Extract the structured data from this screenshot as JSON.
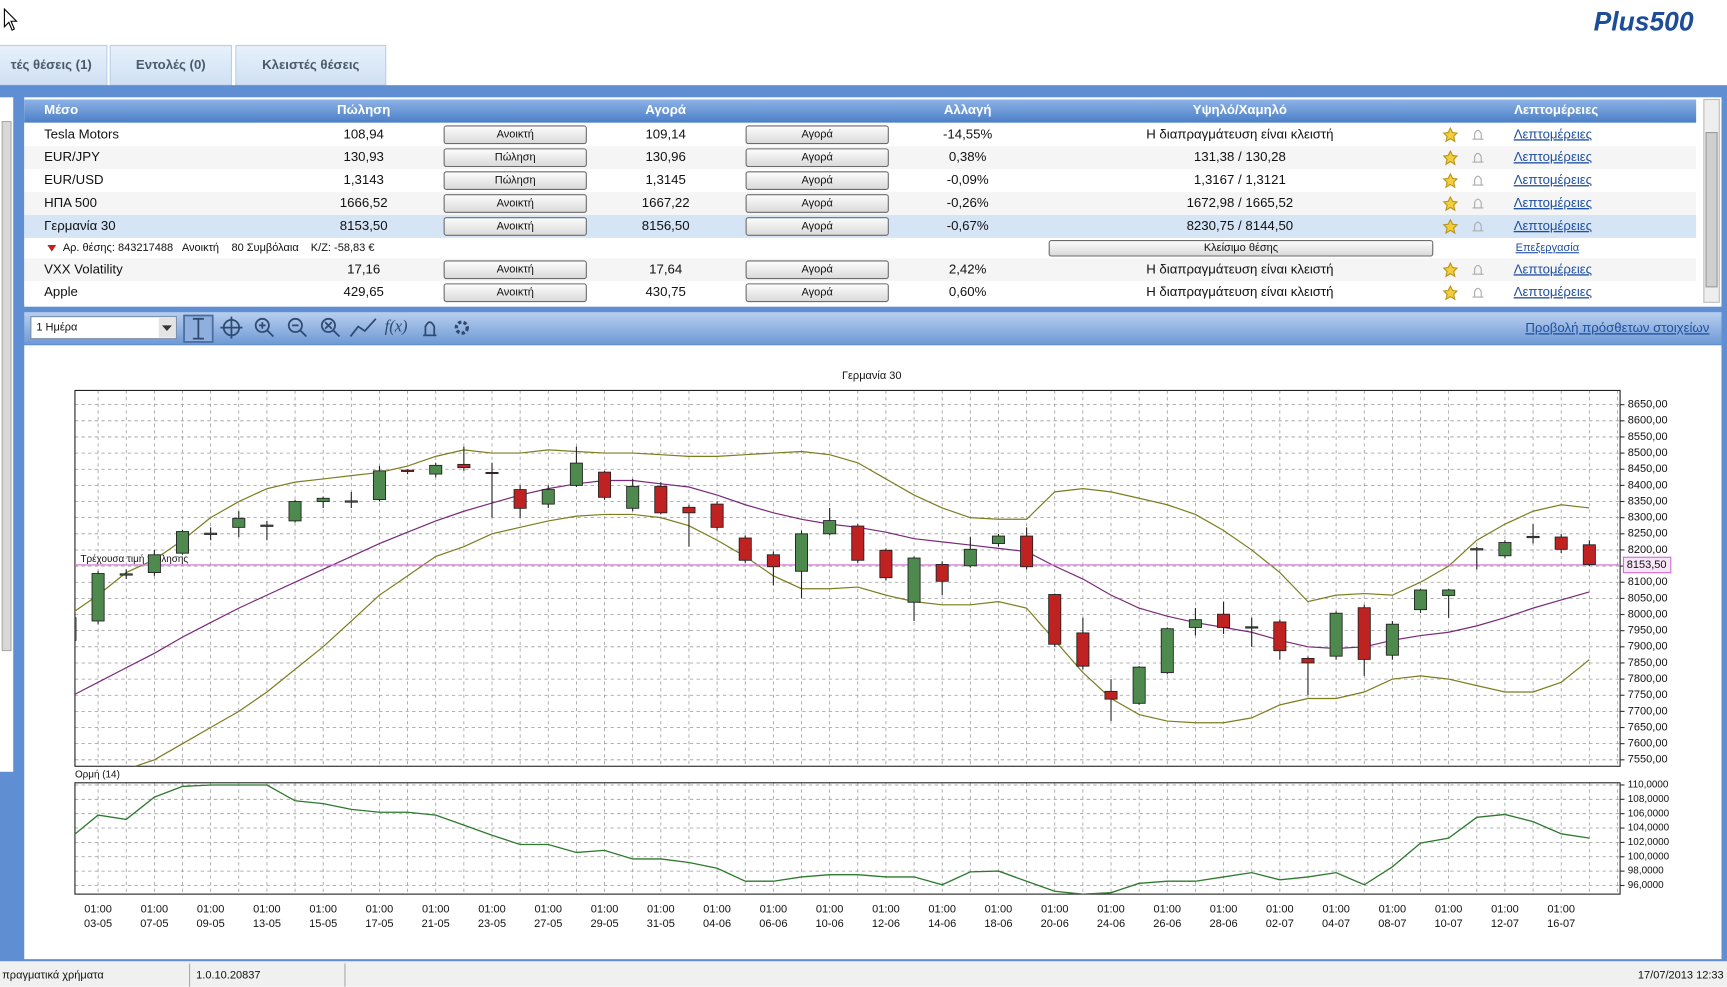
{
  "logo": "Plus500",
  "tabs": [
    "τές θέσεις (1)",
    "Εντολές (0)",
    "Κλειστές θέσεις"
  ],
  "table": {
    "headers": [
      "Μέσο",
      "Πώληση",
      "Αγορά",
      "Αλλαγή",
      "Υψηλό/Χαμηλό",
      "Λεπτομέρειες"
    ],
    "rows": [
      {
        "name": "Tesla Motors",
        "sell": "108,94",
        "sell_button": "Ανοικτή",
        "buy": "109,14",
        "buy_button": "Αγορά",
        "change": "-14,55%",
        "change_color": "#c0282d",
        "high_low": "Η διαπραγμάτευση είναι κλειστή",
        "details": "Λεπτομέρειες"
      },
      {
        "name": "EUR/JPY",
        "sell": "130,93",
        "sell_button": "Πώληση",
        "buy": "130,96",
        "buy_button": "Αγορά",
        "change": "0,38%",
        "change_color": "#3a9a3a",
        "high_low": "131,38 / 130,28",
        "details": "Λεπτομέρειες"
      },
      {
        "name": "EUR/USD",
        "sell": "1,3143",
        "sell_button": "Πώληση",
        "buy": "1,3145",
        "buy_button": "Αγορά",
        "change": "-0,09%",
        "change_color": "#c0282d",
        "price_color": "#3a9a3a",
        "high_low": "1,3167 / 1,3121",
        "details": "Λεπτομέρειες"
      },
      {
        "name": "ΗΠΑ 500",
        "sell": "1666,52",
        "sell_button": "Ανοικτή",
        "buy": "1667,22",
        "buy_button": "Αγορά",
        "change": "-0,26%",
        "change_color": "#c0282d",
        "high_low": "1672,98 / 1665,52",
        "details": "Λεπτομέρειες"
      },
      {
        "name": "Γερμανία 30",
        "sell": "8153,50",
        "sell_button": "Ανοικτή",
        "buy": "8156,50",
        "buy_button": "Αγορά",
        "change": "-0,67%",
        "change_color": "#111111",
        "high_low": "8230,75 / 8144,50",
        "details": "Λεπτομέρειες",
        "selected": true
      },
      {
        "name": "VXX Volatility",
        "sell": "17,16",
        "sell_button": "Ανοικτή",
        "buy": "17,64",
        "buy_button": "Αγορά",
        "change": "2,42%",
        "change_color": "#3a9a3a",
        "high_low": "Η διαπραγμάτευση είναι κλειστή",
        "details": "Λεπτομέρειες"
      },
      {
        "name": "Apple",
        "sell": "429,65",
        "sell_button": "Ανοικτή",
        "buy": "430,75",
        "buy_button": "Αγορά",
        "change": "0,60%",
        "change_color": "#3a9a3a",
        "high_low": "Η διαπραγμάτευση είναι κλειστή",
        "details": "Λεπτομέρειες"
      }
    ],
    "position": {
      "id_label": "Αρ. θέσης: 843217488",
      "status": "Ανοικτή",
      "contracts": "80 Συμβόλαια",
      "pl": "Κ/Ζ: -58,83 €",
      "close_button": "Κλείσιμο θέσης",
      "edit_link": "Επεξεργασία"
    }
  },
  "toolbar": {
    "period": "1 Ημέρα",
    "more_link": "Προβολή πρόσθετων στοιχείων"
  },
  "chart_data": [
    {
      "type": "candlestick",
      "title": "Γερμανία 30",
      "time_label": "01:00",
      "categories": [
        null,
        "03-05",
        null,
        "07-05",
        null,
        "09-05",
        null,
        "13-05",
        null,
        "15-05",
        null,
        "17-05",
        null,
        "21-05",
        null,
        "23-05",
        null,
        "27-05",
        null,
        "29-05",
        null,
        "31-05",
        null,
        "04-06",
        null,
        "06-06",
        null,
        "10-06",
        null,
        "12-06",
        null,
        "14-06",
        null,
        "18-06",
        null,
        "20-06",
        null,
        "24-06",
        null,
        "26-06",
        null,
        "28-06",
        null,
        "02-07",
        null,
        "04-07",
        null,
        "08-07",
        null,
        "10-07",
        null,
        "12-07",
        null,
        "16-07",
        null
      ],
      "open": [
        7920,
        7980,
        8122,
        8130,
        8190,
        8248,
        8270,
        8273,
        8290,
        8350,
        8348,
        8356,
        8447,
        8435,
        8465,
        8440,
        8387,
        8342,
        8400,
        8441,
        8329,
        8397,
        8332,
        8342,
        8237,
        8185,
        8134,
        8250,
        8274,
        8199,
        8038,
        8155,
        8151,
        8220,
        8243,
        8062,
        7943,
        7762,
        7725,
        7820,
        7960,
        8001,
        7962,
        7977,
        7864,
        7871,
        8021,
        7874,
        8015,
        8059,
        8200,
        8182,
        8238,
        8240,
        8216
      ],
      "high": [
        8000,
        8135,
        8140,
        8200,
        8262,
        8270,
        8320,
        8290,
        8355,
        8365,
        8380,
        8460,
        8450,
        8470,
        8520,
        8470,
        8400,
        8400,
        8520,
        8445,
        8420,
        8410,
        8340,
        8350,
        8245,
        8195,
        8260,
        8330,
        8280,
        8205,
        8180,
        8165,
        8240,
        8250,
        8270,
        8065,
        7990,
        7800,
        7840,
        7960,
        8020,
        8040,
        7990,
        7985,
        7870,
        8010,
        8030,
        7980,
        8080,
        8080,
        8210,
        8230,
        8280,
        8250,
        8230
      ],
      "low": [
        7900,
        7970,
        8110,
        8120,
        8185,
        8230,
        8240,
        8230,
        8285,
        8330,
        8330,
        8350,
        8435,
        8425,
        8445,
        8300,
        8300,
        8330,
        8395,
        8355,
        8320,
        8310,
        8210,
        8260,
        8160,
        8090,
        8050,
        8245,
        8160,
        8105,
        7980,
        8060,
        8145,
        8210,
        8140,
        7900,
        7830,
        7670,
        7720,
        7815,
        7935,
        7940,
        7900,
        7860,
        7750,
        7860,
        7810,
        7860,
        8005,
        7990,
        8140,
        8175,
        8220,
        8190,
        8150
      ],
      "close": [
        7990,
        8127,
        8126,
        8185,
        8257,
        8252,
        8298,
        8277,
        8350,
        8360,
        8352,
        8445,
        8443,
        8462,
        8455,
        8438,
        8329,
        8387,
        8469,
        8363,
        8397,
        8315,
        8315,
        8270,
        8168,
        8148,
        8250,
        8291,
        8168,
        8114,
        8175,
        8103,
        8202,
        8243,
        8148,
        7908,
        7840,
        7738,
        7837,
        7956,
        7984,
        7960,
        7958,
        7888,
        7850,
        8004,
        7861,
        7970,
        8076,
        8076,
        8204,
        8223,
        8242,
        8202,
        8155
      ],
      "up_color": "#4e8a4e",
      "down_color": "#c02222",
      "series": [
        {
          "color": "#7a2a7a",
          "values": [
            7745,
            7790,
            7835,
            7880,
            7930,
            7975,
            8020,
            8060,
            8100,
            8140,
            8180,
            8220,
            8255,
            8290,
            8320,
            8345,
            8370,
            8390,
            8405,
            8415,
            8415,
            8405,
            8395,
            8370,
            8340,
            8315,
            8295,
            8280,
            8270,
            8255,
            8235,
            8225,
            8215,
            8205,
            8195,
            8150,
            8110,
            8060,
            8020,
            7995,
            7975,
            7960,
            7945,
            7920,
            7900,
            7895,
            7900,
            7920,
            7935,
            7945,
            7965,
            7990,
            8020,
            8045,
            8070
          ]
        },
        {
          "color": "#7d7d20",
          "values": [
            8000,
            8060,
            8130,
            8170,
            8230,
            8300,
            8350,
            8390,
            8410,
            8420,
            8430,
            8440,
            8460,
            8490,
            8510,
            8500,
            8500,
            8510,
            8505,
            8500,
            8500,
            8495,
            8490,
            8490,
            8495,
            8500,
            8505,
            8495,
            8470,
            8420,
            8370,
            8330,
            8300,
            8295,
            8295,
            8380,
            8390,
            8380,
            8360,
            8340,
            8310,
            8260,
            8200,
            8130,
            8040,
            8060,
            8065,
            8060,
            8100,
            8150,
            8230,
            8280,
            8320,
            8340,
            8330
          ]
        },
        {
          "color": "#7d7d20",
          "values": [
            null,
            null,
            7520,
            7550,
            7600,
            7650,
            7700,
            7760,
            7830,
            7900,
            7980,
            8060,
            8120,
            8180,
            8210,
            8250,
            8270,
            8290,
            8305,
            8310,
            8310,
            8300,
            8275,
            8230,
            8180,
            8120,
            8080,
            8080,
            8085,
            8060,
            8040,
            8030,
            8030,
            8040,
            8020,
            7920,
            7820,
            7740,
            7690,
            7670,
            7665,
            7665,
            7680,
            7720,
            7740,
            7740,
            7760,
            7800,
            7810,
            7800,
            7780,
            7760,
            7760,
            7790,
            7860
          ]
        }
      ],
      "current_price": {
        "value": 8153.5,
        "label": "8153,50",
        "name": "Τρέχουσα τιμή πώλησης",
        "color": "#d46ad4"
      },
      "ylim": [
        7530,
        8694
      ],
      "yticks": [
        {
          "value": 7550,
          "label": "7550,00"
        },
        {
          "value": 7600,
          "label": "7600,00"
        },
        {
          "value": 7650,
          "label": "7650,00"
        },
        {
          "value": 7700,
          "label": "7700,00"
        },
        {
          "value": 7750,
          "label": "7750,00"
        },
        {
          "value": 7800,
          "label": "7800,00"
        },
        {
          "value": 7850,
          "label": "7850,00"
        },
        {
          "value": 7900,
          "label": "7900,00"
        },
        {
          "value": 7950,
          "label": "7950,00"
        },
        {
          "value": 8000,
          "label": "8000,00"
        },
        {
          "value": 8050,
          "label": "8050,00"
        },
        {
          "value": 8100,
          "label": "8100,00"
        },
        {
          "value": 8150,
          "label": "8150,00"
        },
        {
          "value": 8200,
          "label": "8200,00"
        },
        {
          "value": 8250,
          "label": "8250,00"
        },
        {
          "value": 8300,
          "label": "8300,00"
        },
        {
          "value": 8350,
          "label": "8350,00"
        },
        {
          "value": 8400,
          "label": "8400,00"
        },
        {
          "value": 8450,
          "label": "8450,00"
        },
        {
          "value": 8500,
          "label": "8500,00"
        },
        {
          "value": 8550,
          "label": "8550,00"
        },
        {
          "value": 8600,
          "label": "8600,00"
        },
        {
          "value": 8650,
          "label": "8650,00"
        }
      ],
      "grid": true
    },
    {
      "type": "line",
      "title": "Ορμή (14)",
      "series": [
        {
          "color": "#2e7a2e",
          "values": [
            102.6,
            105.8,
            105.2,
            108.3,
            109.8,
            110,
            110,
            110,
            107.8,
            107.4,
            106.6,
            106.2,
            106.2,
            105.8,
            104.4,
            103,
            101.7,
            101.7,
            100.6,
            100.9,
            99.7,
            99.7,
            99.2,
            98.4,
            96.6,
            96.6,
            97.2,
            97.5,
            97.5,
            97.2,
            97.2,
            96.1,
            97.9,
            98,
            96.6,
            95.2,
            94.8,
            95,
            96.3,
            96.6,
            96.6,
            97.2,
            97.8,
            96.8,
            97.2,
            97.8,
            96.1,
            98.6,
            101.9,
            102.6,
            105.5,
            105.9,
            104.9,
            103.2,
            102.6
          ]
        }
      ],
      "ylim": [
        94.8,
        110.3
      ],
      "yticks": [
        {
          "value": 96,
          "label": "96,0000"
        },
        {
          "value": 98,
          "label": "98,0000"
        },
        {
          "value": 100,
          "label": "100,0000"
        },
        {
          "value": 102,
          "label": "102,0000"
        },
        {
          "value": 104,
          "label": "104,0000"
        },
        {
          "value": 106,
          "label": "106,0000"
        },
        {
          "value": 108,
          "label": "108,0000"
        },
        {
          "value": 110,
          "label": "110,0000"
        }
      ],
      "grid": true
    }
  ],
  "status_bar": {
    "account": "πραγματικά χρήματα",
    "version": "1.0.10.20837",
    "datetime": "17/07/2013 12:33"
  }
}
